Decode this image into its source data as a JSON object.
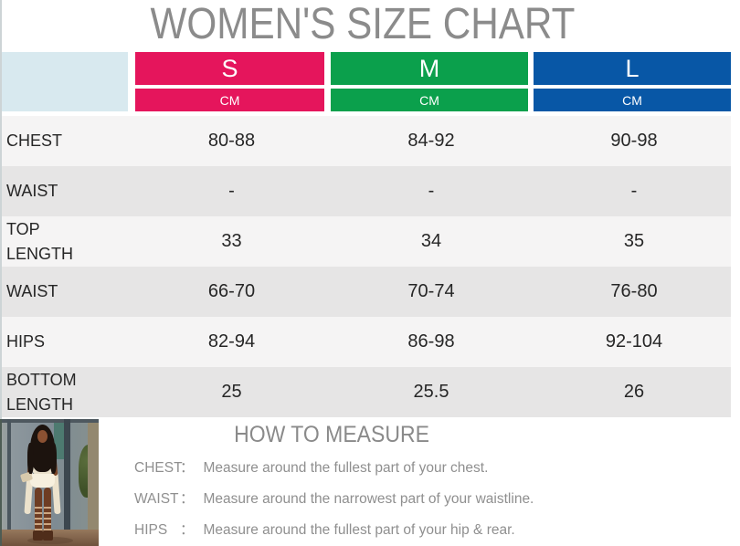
{
  "page": {
    "title": "WOMEN'S SIZE CHART"
  },
  "size_chart": {
    "unit_label": "CM",
    "sizes": [
      {
        "label": "S",
        "color": "#e5155c"
      },
      {
        "label": "M",
        "color": "#0ba04c"
      },
      {
        "label": "L",
        "color": "#0857a6"
      }
    ],
    "rows": [
      {
        "label": "CHEST",
        "values": [
          "80-88",
          "84-92",
          "90-98"
        ]
      },
      {
        "label": "WAIST",
        "values": [
          "-",
          "-",
          "-"
        ]
      },
      {
        "label": "TOP LENGTH",
        "values": [
          "33",
          "34",
          "35"
        ]
      },
      {
        "label": "WAIST",
        "values": [
          "66-70",
          "70-74",
          "76-80"
        ]
      },
      {
        "label": "HIPS",
        "values": [
          "82-94",
          "86-98",
          "92-104"
        ]
      },
      {
        "label": "BOTTOM LENGTH",
        "values": [
          "25",
          "25.5",
          "26"
        ]
      }
    ]
  },
  "how_to_measure": {
    "title": "HOW TO MEASURE",
    "colon": "：",
    "items": [
      {
        "term": "CHEST",
        "definition": "Measure around the fullest part of your chest."
      },
      {
        "term": "WAIST",
        "definition": "Measure around the narrowest part of your waistline."
      },
      {
        "term": "HIPS",
        "definition": "Measure around the fullest part of your hip & rear."
      }
    ]
  },
  "colors": {
    "header_corner": "#d8e9ef",
    "row_light": "#f5f4f4",
    "row_dark": "#e6e5e5",
    "title_text": "#8b8b8b",
    "table_text": "#262626",
    "measure_text": "#8f8f8f"
  }
}
